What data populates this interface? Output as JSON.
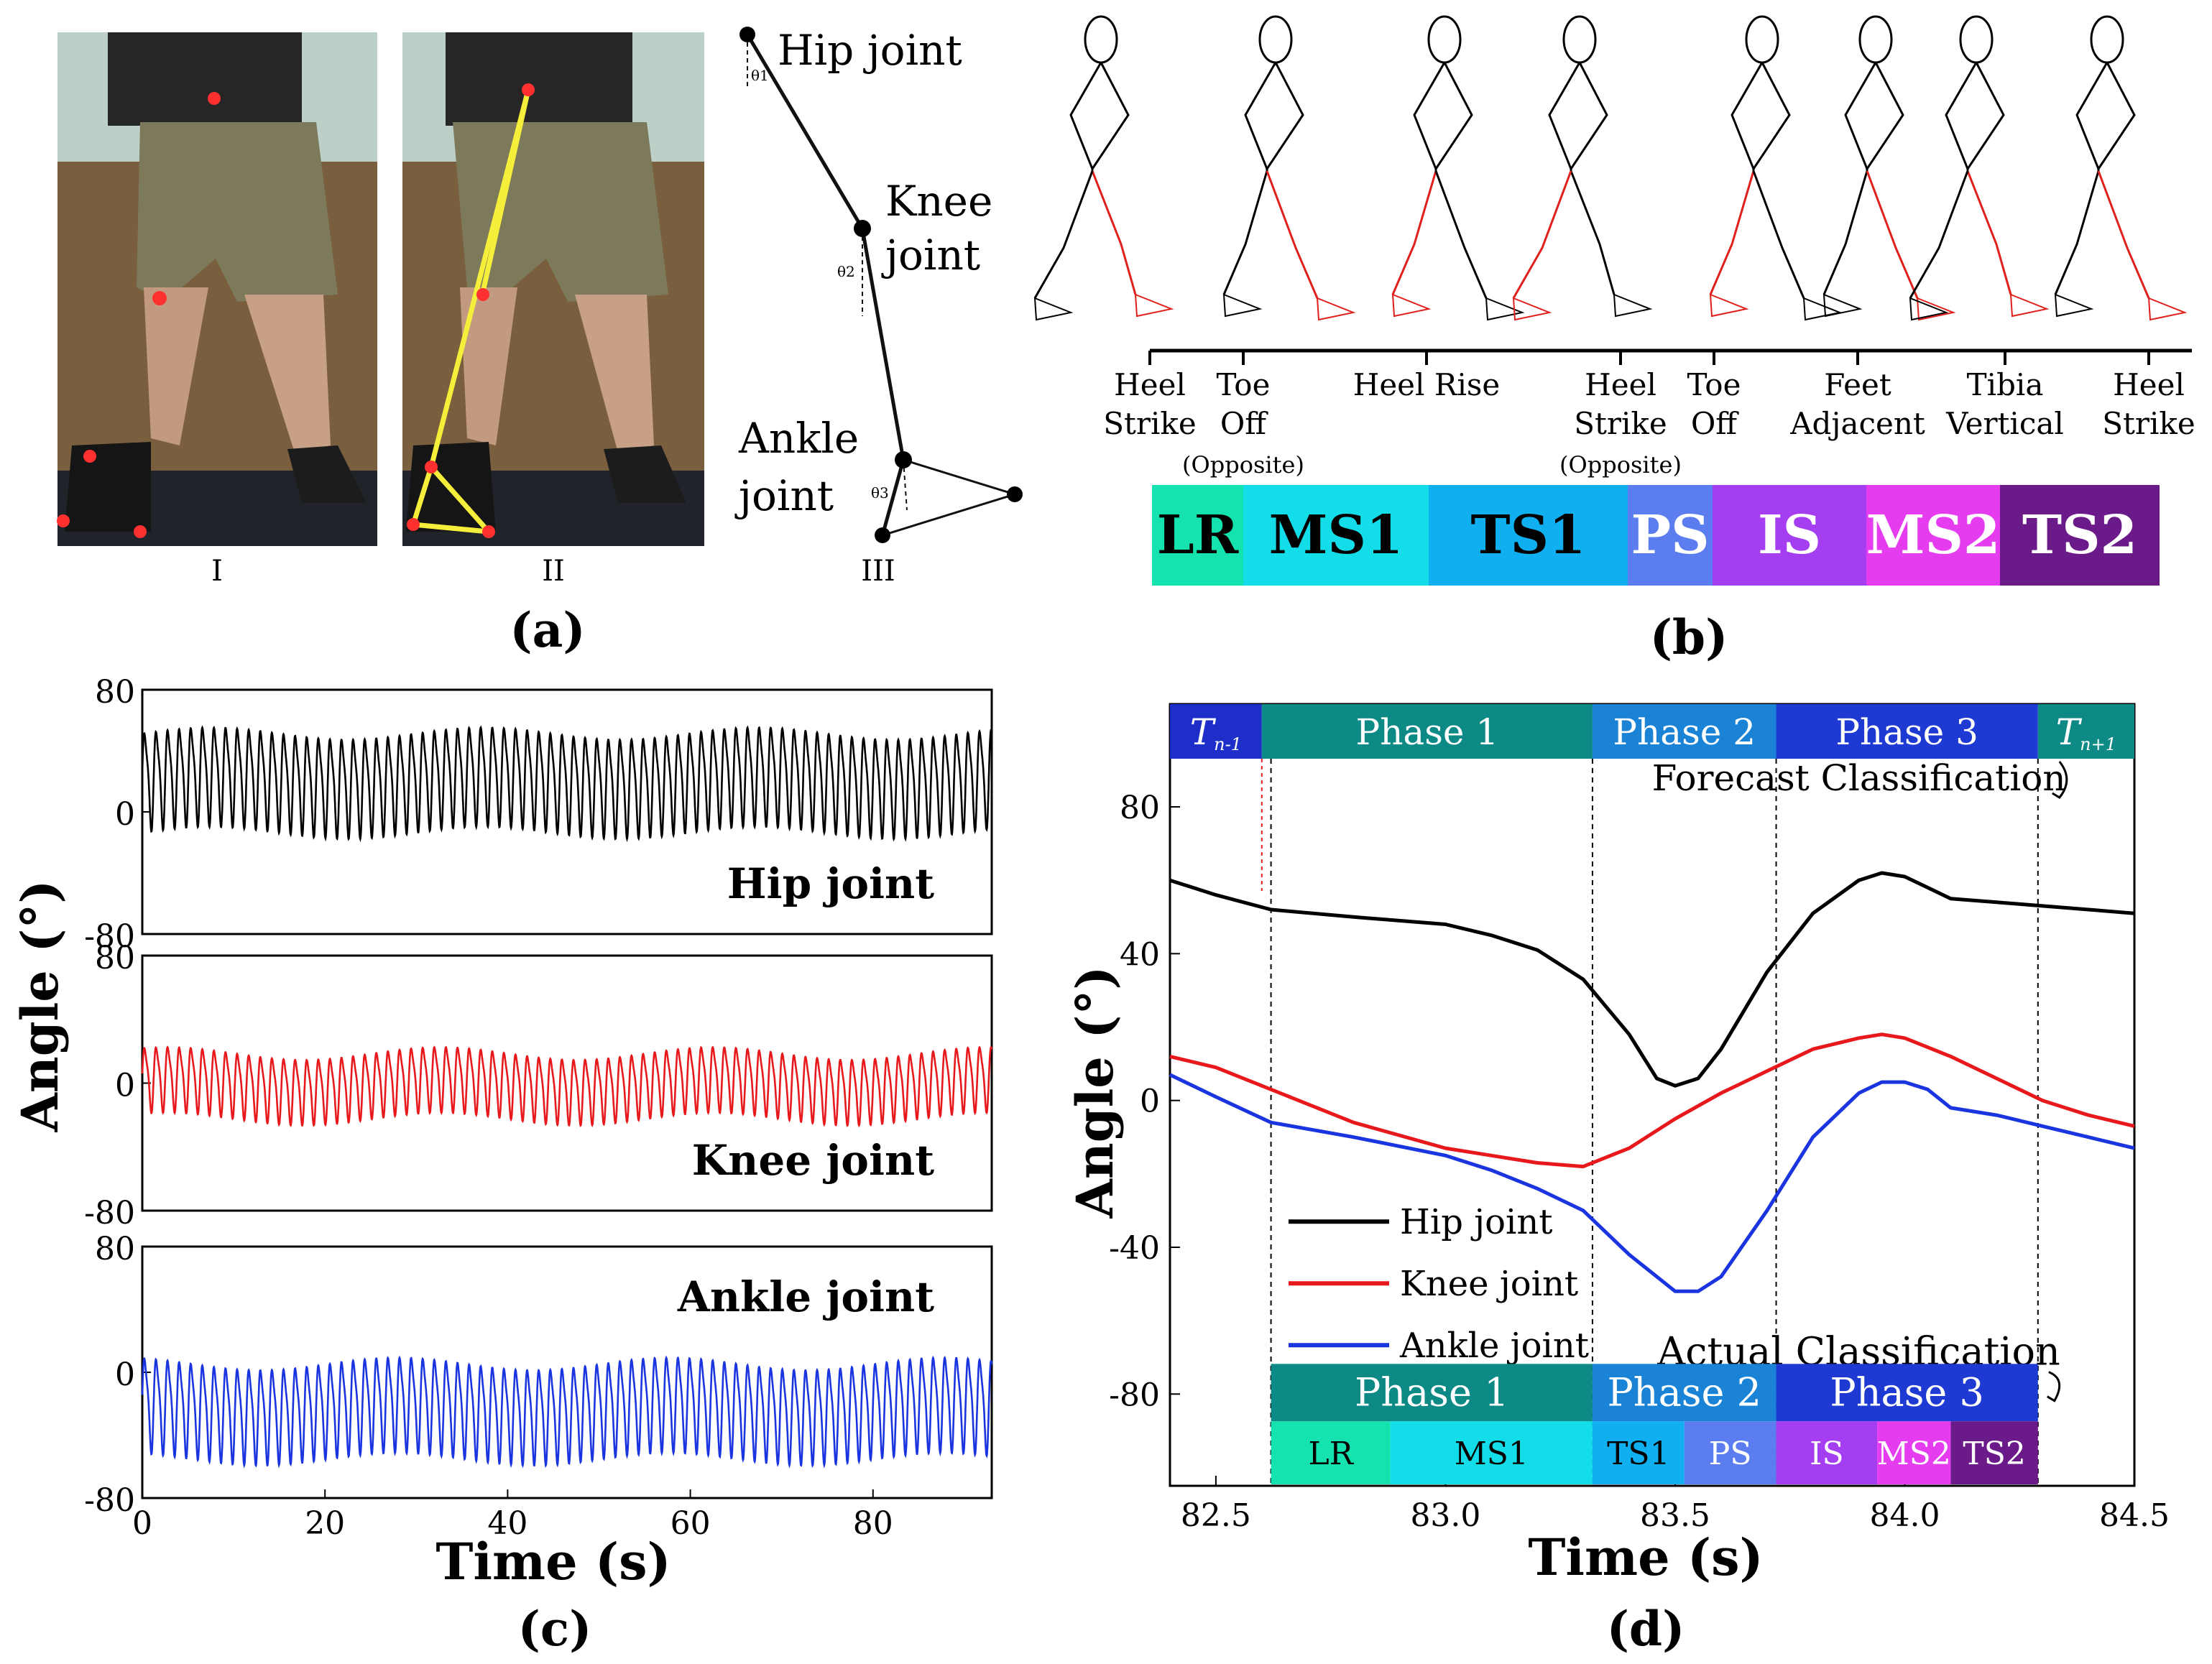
{
  "panel_a": {
    "caption": "(a)",
    "sub_labels": [
      "I",
      "II",
      "III"
    ],
    "joints": {
      "hip": [
        "Hip joint"
      ],
      "knee": [
        "Knee",
        "joint"
      ],
      "ankle": [
        "Ankle",
        "joint"
      ]
    },
    "angle_symbols": [
      "θ1",
      "θ2",
      "θ3"
    ]
  },
  "panel_b": {
    "caption": "(b)",
    "events": [
      {
        "lines": [
          "Heel",
          "Strike"
        ]
      },
      {
        "lines": [
          "Toe",
          "Off",
          "(Opposite)"
        ]
      },
      {
        "lines": [
          "Heel Rise"
        ]
      },
      {
        "lines": [
          "Heel",
          "Strike",
          "(Opposite)"
        ]
      },
      {
        "lines": [
          "Toe",
          "Off"
        ]
      },
      {
        "lines": [
          "Feet",
          "Adjacent"
        ]
      },
      {
        "lines": [
          "Tibia",
          "Vertical"
        ]
      },
      {
        "lines": [
          "Heel",
          "Strike"
        ]
      }
    ],
    "phases": [
      {
        "label": "LR",
        "color": "#14e3b0"
      },
      {
        "label": "MS1",
        "color": "#12dde8"
      },
      {
        "label": "TS1",
        "color": "#10aff0"
      },
      {
        "label": "PS",
        "color": "#5b7df0"
      },
      {
        "label": "IS",
        "color": "#a53ef0"
      },
      {
        "label": "MS2",
        "color": "#e53cf0"
      },
      {
        "label": "TS2",
        "color": "#6b1a8a"
      }
    ]
  },
  "chart_data": [
    {
      "type": "line",
      "panel": "(c)",
      "xlabel": "Time (s)",
      "ylabel": "Angle (°)",
      "xlim": [
        0,
        93
      ],
      "xticks": [
        "0",
        "20",
        "40",
        "60",
        "80"
      ],
      "subplots": [
        {
          "name": "Hip joint",
          "color": "#000000",
          "ylim": [
            -80,
            80
          ],
          "yticks": [
            "80",
            "0",
            "-80"
          ],
          "mean": 22,
          "amplitude": 30,
          "period_s": 1.27
        },
        {
          "name": "Knee joint",
          "color": "#e8191c",
          "ylim": [
            -80,
            80
          ],
          "yticks": [
            "80",
            "0",
            "-80"
          ],
          "mean": 0,
          "amplitude": 19,
          "period_s": 1.27
        },
        {
          "name": "Ankle joint",
          "color": "#1a35e0",
          "ylim": [
            -80,
            80
          ],
          "yticks": [
            "80",
            "0",
            "-80"
          ],
          "mean": -22,
          "amplitude": 28,
          "period_s": 1.27
        }
      ]
    },
    {
      "type": "line",
      "panel": "(d)",
      "xlabel": "Time (s)",
      "ylabel": "Angle (°)",
      "xlim": [
        82.4,
        84.5
      ],
      "ylim": [
        -105,
        108
      ],
      "xticks": [
        "82.5",
        "83.0",
        "83.5",
        "84.0",
        "84.5"
      ],
      "yticks": [
        "80",
        "40",
        "0",
        "-40",
        "-80"
      ],
      "boundaries_s": [
        82.62,
        83.32,
        83.72,
        84.29
      ],
      "series": [
        {
          "name": "Hip joint",
          "color": "#000000",
          "x": [
            82.4,
            82.5,
            82.62,
            82.8,
            83.0,
            83.1,
            83.2,
            83.3,
            83.4,
            83.46,
            83.5,
            83.55,
            83.6,
            83.7,
            83.8,
            83.9,
            83.95,
            84.0,
            84.05,
            84.1,
            84.2,
            84.3,
            84.4,
            84.5
          ],
          "y": [
            60,
            56,
            52,
            50,
            48,
            45,
            41,
            33,
            18,
            6,
            4,
            6,
            14,
            35,
            51,
            60,
            62,
            61,
            58,
            55,
            54,
            53,
            52,
            51
          ]
        },
        {
          "name": "Knee joint",
          "color": "#e8191c",
          "x": [
            82.4,
            82.5,
            82.62,
            82.8,
            83.0,
            83.1,
            83.2,
            83.3,
            83.4,
            83.5,
            83.6,
            83.7,
            83.8,
            83.9,
            83.95,
            84.0,
            84.1,
            84.2,
            84.3,
            84.4,
            84.5
          ],
          "y": [
            12,
            9,
            3,
            -6,
            -13,
            -15,
            -17,
            -18,
            -13,
            -5,
            2,
            8,
            14,
            17,
            18,
            17,
            12,
            6,
            0,
            -4,
            -7
          ]
        },
        {
          "name": "Ankle joint",
          "color": "#1a35e0",
          "x": [
            82.4,
            82.5,
            82.62,
            82.8,
            83.0,
            83.1,
            83.2,
            83.3,
            83.4,
            83.5,
            83.55,
            83.6,
            83.7,
            83.8,
            83.9,
            83.95,
            84.0,
            84.05,
            84.1,
            84.2,
            84.3,
            84.4,
            84.5
          ],
          "y": [
            7,
            1,
            -6,
            -10,
            -15,
            -19,
            -24,
            -30,
            -42,
            -52,
            -52,
            -48,
            -30,
            -10,
            2,
            5,
            5,
            3,
            -2,
            -4,
            -7,
            -10,
            -13
          ]
        }
      ],
      "legend_entries": [
        "Hip joint",
        "Knee joint",
        "Ankle joint"
      ],
      "forecast_label": "Forecast Classification",
      "actual_label": "Actual Classification",
      "forecast_bar": [
        {
          "label": "T",
          "sub": "n-1",
          "color": "#1d2fc8"
        },
        {
          "label": "Phase 1",
          "color": "#0e8a86"
        },
        {
          "label": "Phase 2",
          "color": "#1a83d6"
        },
        {
          "label": "Phase 3",
          "color": "#1e3ad2"
        },
        {
          "label": "T",
          "sub": "n+1",
          "color": "#0e8a86"
        }
      ],
      "actual_bar": [
        {
          "label": "Phase 1",
          "color": "#0e8a86"
        },
        {
          "label": "Phase 2",
          "color": "#1a83d6"
        },
        {
          "label": "Phase 3",
          "color": "#1e3ad2"
        }
      ],
      "actual_sub_bar": [
        {
          "label": "LR",
          "color": "#14e3b0"
        },
        {
          "label": "MS1",
          "color": "#12dde8"
        },
        {
          "label": "TS1",
          "color": "#10aff0"
        },
        {
          "label": "PS",
          "color": "#5b7df0"
        },
        {
          "label": "IS",
          "color": "#a53ef0"
        },
        {
          "label": "MS2",
          "color": "#e53cf0"
        },
        {
          "label": "TS2",
          "color": "#6b1a8a"
        }
      ]
    }
  ],
  "panel_c_caption": "(c)",
  "panel_d_caption": "(d)"
}
